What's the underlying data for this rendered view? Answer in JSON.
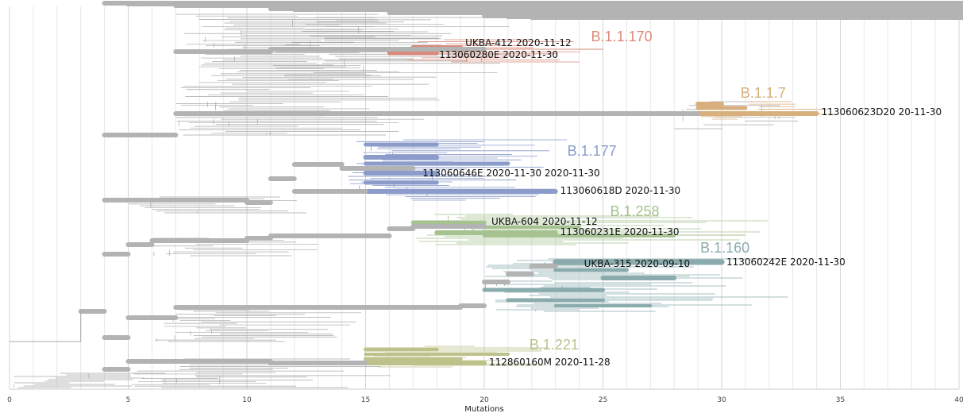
{
  "chart_data": {
    "type": "phylogenetic-tree",
    "title": "",
    "xlabel": "Mutations",
    "ylabel": "",
    "xlim": [
      0,
      40
    ],
    "xticks": [
      "0",
      "5",
      "10",
      "15",
      "20",
      "25",
      "30",
      "35",
      "40"
    ],
    "grid": true,
    "colors": {
      "backbone": "#b3b3b3",
      "thin_branch": "#a8a8a8",
      "B.1.1.170": "#d98a7a",
      "B.1.1.7": "#d8b07e",
      "B.1.177": "#8b9ccb",
      "B.1.258": "#a5c290",
      "B.1.160": "#8aabad",
      "B.1.221": "#bcc28a"
    },
    "lineages": [
      {
        "name": "B.1.1.170",
        "color": "#d98a7a",
        "branch_x": [
          16,
          25
        ]
      },
      {
        "name": "B.1.1.7",
        "color": "#d8b07e",
        "branch_x": [
          28,
          34
        ]
      },
      {
        "name": "B.1.177",
        "color": "#8b9ccb",
        "branch_x": [
          14,
          23
        ]
      },
      {
        "name": "B.1.258",
        "color": "#a5c290",
        "branch_x": [
          17,
          31
        ]
      },
      {
        "name": "B.1.160",
        "color": "#8aabad",
        "branch_x": [
          20,
          32
        ]
      },
      {
        "name": "B.1.221",
        "color": "#bcc28a",
        "branch_x": [
          11,
          21
        ]
      }
    ],
    "tips": [
      {
        "label": "UKBA-412 2020-11-12",
        "x": 19,
        "lineage": "B.1.1.170"
      },
      {
        "label": "113060280E 2020-11-30",
        "x": 18,
        "lineage": "B.1.1.170"
      },
      {
        "label": "113060623D20 20-11-30",
        "x": 34,
        "lineage": "B.1.1.7"
      },
      {
        "label": "113060646E 2020-11-30 2020-11-30",
        "x": 17,
        "lineage": "B.1.177"
      },
      {
        "label": "113060618D 2020-11-30",
        "x": 23,
        "lineage": "B.1.177"
      },
      {
        "label": "UKBA-604 2020-11-12",
        "x": 20,
        "lineage": "B.1.258"
      },
      {
        "label": "113060231E 2020-11-30",
        "x": 23,
        "lineage": "B.1.258"
      },
      {
        "label": "UKBA-315 2020-09-10",
        "x": 24,
        "lineage": "B.1.160"
      },
      {
        "label": "113060242E 2020-11-30",
        "x": 30,
        "lineage": "B.1.160"
      },
      {
        "label": "112860160M 2020-11-28",
        "x": 20,
        "lineage": "B.1.221"
      }
    ]
  }
}
